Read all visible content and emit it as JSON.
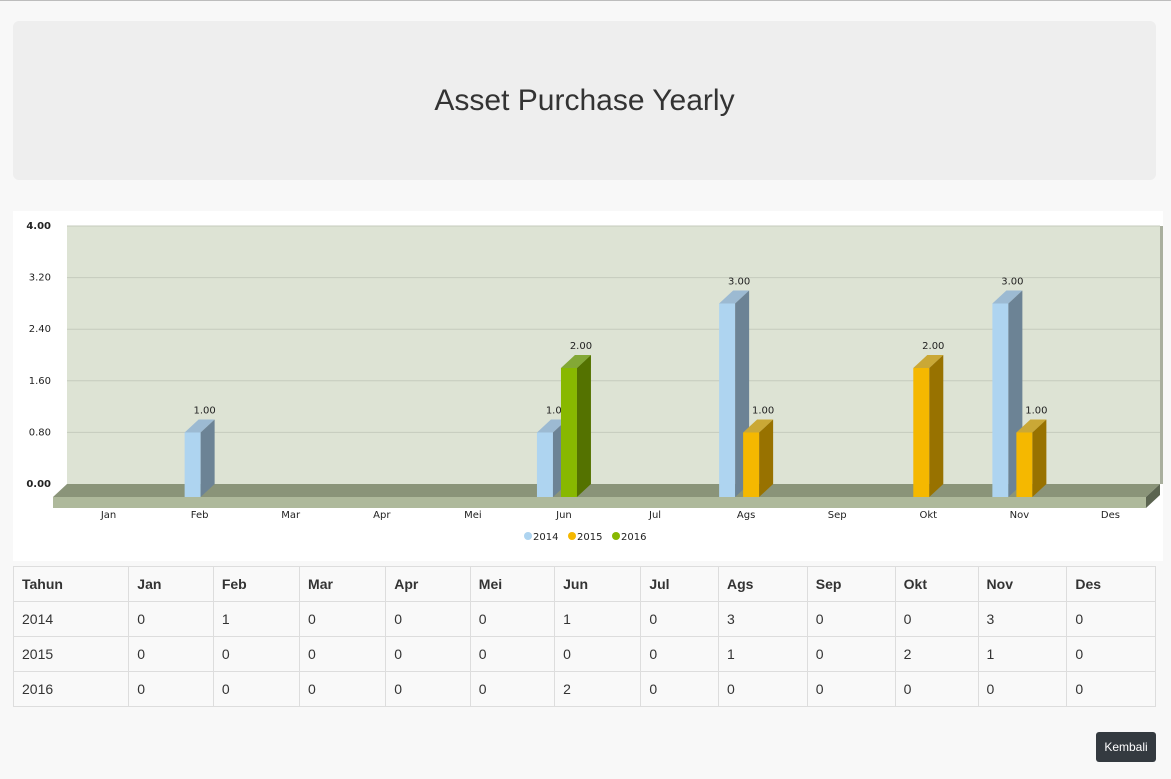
{
  "header": {
    "title": "Asset Purchase Yearly"
  },
  "chart_data": {
    "type": "bar",
    "categories": [
      "Jan",
      "Feb",
      "Mar",
      "Apr",
      "Mei",
      "Jun",
      "Jul",
      "Ags",
      "Sep",
      "Okt",
      "Nov",
      "Des"
    ],
    "series": [
      {
        "name": "2014",
        "color": "#aed4f0",
        "values": [
          0,
          1,
          0,
          0,
          0,
          1,
          0,
          3,
          0,
          0,
          3,
          0
        ]
      },
      {
        "name": "2015",
        "color": "#f5b800",
        "values": [
          0,
          0,
          0,
          0,
          0,
          0,
          0,
          1,
          0,
          2,
          1,
          0
        ]
      },
      {
        "name": "2016",
        "color": "#88b800",
        "values": [
          0,
          0,
          0,
          0,
          0,
          2,
          0,
          0,
          0,
          0,
          0,
          0
        ]
      }
    ],
    "ylim": [
      0,
      4
    ],
    "yticks": [
      "0.00",
      "0.80",
      "1.60",
      "2.40",
      "3.20",
      "4.00"
    ],
    "grid": true,
    "legend": "bottom-center",
    "style": "3d-bar"
  },
  "table": {
    "headers": [
      "Tahun",
      "Jan",
      "Feb",
      "Mar",
      "Apr",
      "Mei",
      "Jun",
      "Jul",
      "Ags",
      "Sep",
      "Okt",
      "Nov",
      "Des"
    ],
    "rows": [
      [
        "2014",
        "0",
        "1",
        "0",
        "0",
        "0",
        "1",
        "0",
        "3",
        "0",
        "0",
        "3",
        "0"
      ],
      [
        "2015",
        "0",
        "0",
        "0",
        "0",
        "0",
        "0",
        "0",
        "1",
        "0",
        "2",
        "1",
        "0"
      ],
      [
        "2016",
        "0",
        "0",
        "0",
        "0",
        "0",
        "2",
        "0",
        "0",
        "0",
        "0",
        "0",
        "0"
      ]
    ]
  },
  "actions": {
    "back_label": "Kembali"
  }
}
